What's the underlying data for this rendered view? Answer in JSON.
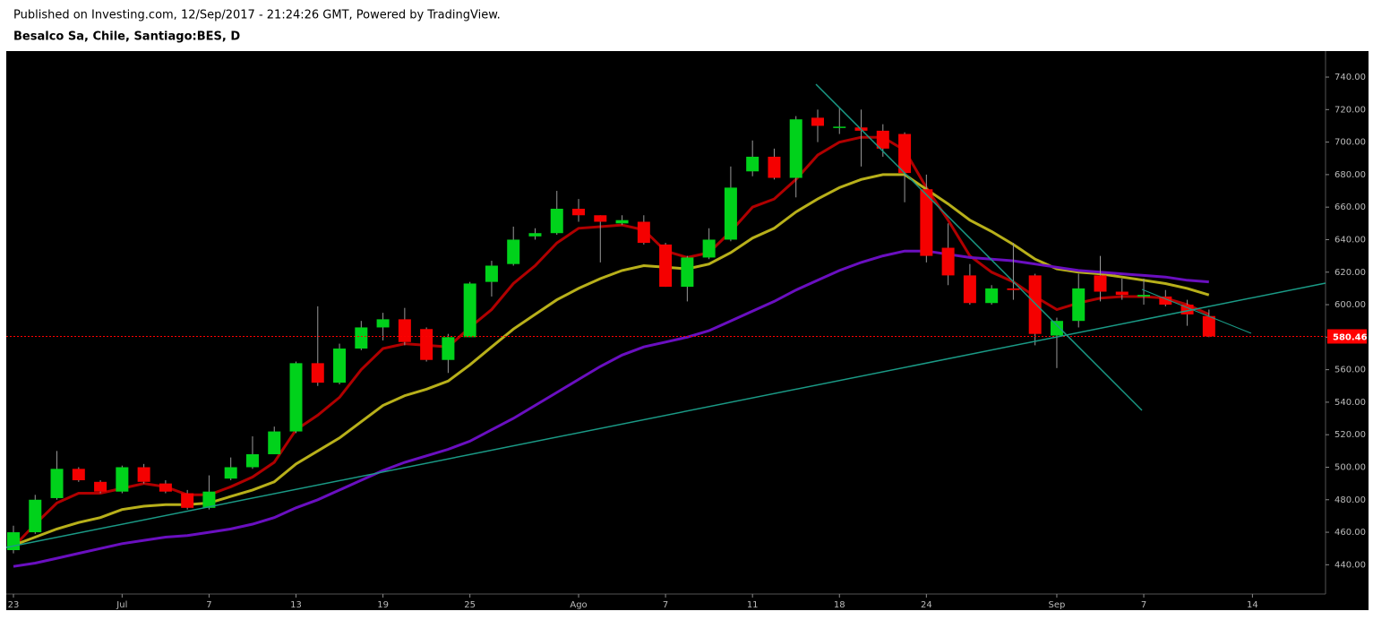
{
  "chart_data": {
    "type": "candlestick",
    "source": "Published on Investing.com, 12/Sep/2017 - 21:24:26 GMT, Powered by TradingView.",
    "title": "Besalco Sa, Chile, Santiago:BES, D",
    "categories": [
      "23",
      null,
      null,
      null,
      null,
      "Jul",
      null,
      null,
      null,
      "7",
      null,
      null,
      null,
      "13",
      null,
      null,
      null,
      "19",
      null,
      null,
      null,
      "25",
      null,
      null,
      null,
      null,
      "Ago",
      null,
      null,
      null,
      "7",
      null,
      null,
      null,
      "11",
      null,
      null,
      null,
      "18",
      null,
      null,
      null,
      "24",
      null,
      null,
      null,
      null,
      null,
      "Sep",
      null,
      null,
      null,
      "7",
      null,
      null,
      null,
      null,
      "14"
    ],
    "open": [
      449,
      460,
      481,
      499,
      491,
      485,
      500,
      490,
      484,
      475,
      493,
      500,
      508,
      522,
      564,
      552,
      573,
      586,
      591,
      585,
      566,
      580,
      614,
      625,
      642,
      644,
      659,
      655,
      650,
      651,
      637,
      611,
      629,
      640,
      682,
      691,
      678,
      715,
      709,
      709,
      707,
      705,
      671,
      635,
      618,
      601,
      610,
      618,
      581,
      590,
      618,
      608,
      605,
      605,
      600,
      593,
      null,
      null
    ],
    "high": [
      464,
      483,
      510,
      500,
      492,
      501,
      502,
      492,
      486,
      495,
      506,
      519,
      525,
      565,
      599,
      576,
      590,
      595,
      598,
      586,
      582,
      614,
      627,
      648,
      647,
      670,
      665,
      655,
      655,
      655,
      638,
      630,
      647,
      685,
      701,
      696,
      716,
      720,
      721,
      720,
      711,
      706,
      680,
      650,
      625,
      612,
      638,
      619,
      592,
      619,
      630,
      616,
      616,
      609,
      603,
      597,
      null,
      null
    ],
    "low": [
      447,
      459,
      480,
      491,
      484,
      484,
      490,
      484,
      474,
      474,
      492,
      499,
      508,
      521,
      550,
      551,
      572,
      578,
      575,
      565,
      558,
      580,
      605,
      624,
      640,
      643,
      651,
      626,
      649,
      637,
      611,
      602,
      628,
      639,
      679,
      677,
      666,
      700,
      705,
      685,
      691,
      663,
      626,
      612,
      600,
      600,
      603,
      575,
      561,
      586,
      602,
      603,
      600,
      599,
      587,
      580,
      null,
      null
    ],
    "close": [
      460,
      480,
      499,
      492,
      485,
      500,
      491,
      485,
      475,
      485,
      500,
      508,
      522,
      564,
      552,
      573,
      586,
      591,
      577,
      566,
      580,
      613,
      624,
      640,
      644,
      659,
      655,
      651,
      652,
      638,
      611,
      629,
      640,
      672,
      691,
      678,
      714,
      710,
      709.5,
      707,
      696,
      681,
      630,
      618,
      601,
      610,
      609,
      582,
      590,
      610,
      608,
      606,
      606,
      600,
      594,
      580.46,
      null,
      null
    ],
    "up_color": "#00d21b",
    "down_color": "#f50000",
    "last_price": 580.46,
    "last_price_label": "580.46",
    "last_price_color": "#ff0000",
    "series": [
      {
        "color": "#b00000",
        "values": [
          451,
          465,
          478,
          484,
          484,
          487,
          490,
          488,
          483,
          483,
          488,
          494,
          503,
          523,
          532,
          543,
          560,
          573,
          576,
          575,
          574,
          586,
          597,
          613,
          624,
          638,
          647,
          648,
          649,
          646,
          633,
          629,
          632,
          645,
          660,
          665,
          677,
          692,
          700,
          703,
          703,
          695,
          672,
          652,
          630,
          620,
          614,
          605,
          597,
          601,
          604,
          605,
          605,
          604,
          600,
          594,
          null,
          null
        ]
      },
      {
        "color": "#b8b01a",
        "values": [
          452,
          457,
          462,
          466,
          469,
          474,
          476,
          477,
          477,
          478,
          482,
          486,
          491,
          502,
          510,
          518,
          528,
          538,
          544,
          548,
          553,
          563,
          574,
          585,
          594,
          603,
          610,
          616,
          621,
          624,
          623,
          622,
          625,
          632,
          641,
          647,
          657,
          665,
          672,
          677,
          680,
          680,
          671,
          662,
          652,
          645,
          637,
          628,
          622,
          620,
          619,
          617,
          615,
          613,
          610,
          606,
          null,
          null
        ]
      },
      {
        "color": "#6a0fc0",
        "values": [
          439,
          441,
          444,
          447,
          450,
          453,
          455,
          457,
          458,
          460,
          462,
          465,
          469,
          475,
          480,
          486,
          492,
          498,
          503,
          507,
          511,
          516,
          523,
          530,
          538,
          546,
          554,
          562,
          569,
          574,
          577,
          580,
          584,
          590,
          596,
          602,
          609,
          615,
          621,
          626,
          630,
          633,
          633,
          631,
          629,
          628,
          627,
          625,
          623,
          621,
          620,
          619,
          618,
          617,
          615,
          614,
          null,
          null
        ]
      }
    ],
    "ylim": [
      422,
      756
    ],
    "yticks": [
      {
        "value": 440,
        "label": "440.00"
      },
      {
        "value": 460,
        "label": "460.00"
      },
      {
        "value": 480,
        "label": "480.00"
      },
      {
        "value": 500,
        "label": "500.00"
      },
      {
        "value": 520,
        "label": "520.00"
      },
      {
        "value": 540,
        "label": "540.00"
      },
      {
        "value": 560,
        "label": "560.00"
      },
      {
        "value": 580,
        "label": "580.00"
      },
      {
        "value": 600,
        "label": "600.00"
      },
      {
        "value": 620,
        "label": "620.00"
      },
      {
        "value": 640,
        "label": "640.00"
      },
      {
        "value": 660,
        "label": "660.00"
      },
      {
        "value": 680,
        "label": "680.00"
      },
      {
        "value": 700,
        "label": "700.00"
      },
      {
        "value": 720,
        "label": "720.00"
      },
      {
        "value": 740,
        "label": "740.00"
      }
    ],
    "grid": false
  }
}
